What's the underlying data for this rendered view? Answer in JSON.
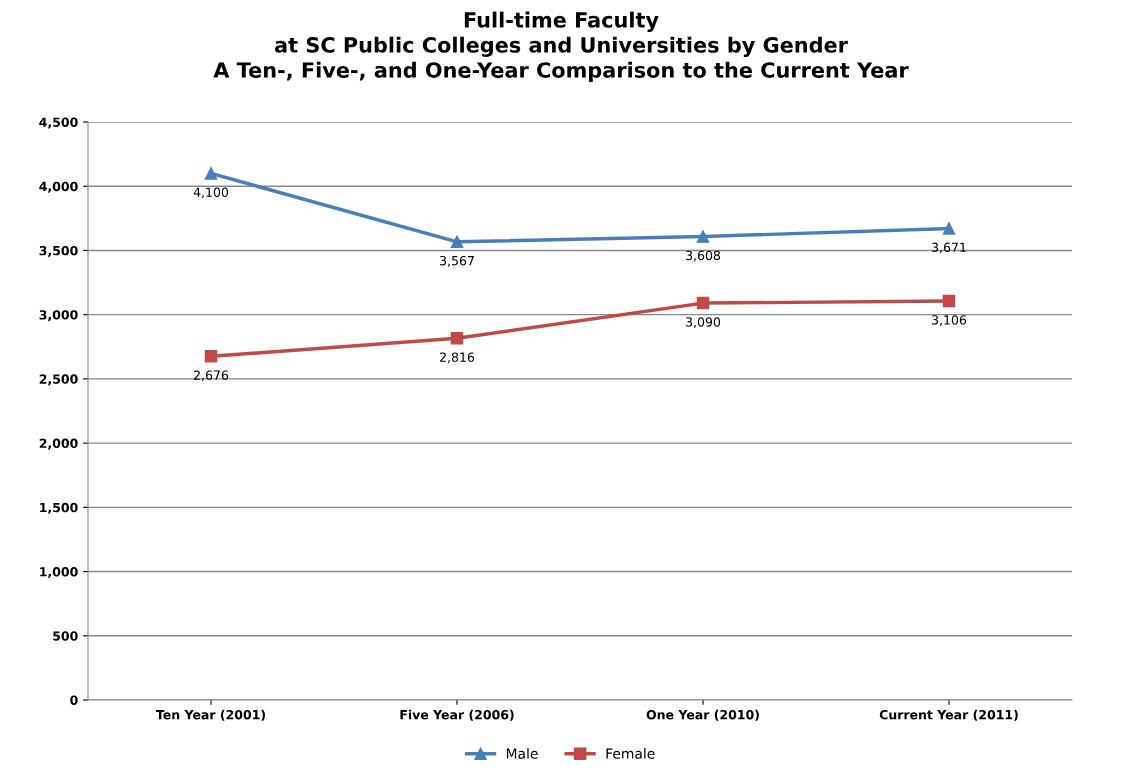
{
  "chart_data": {
    "type": "line",
    "title": "Full-time Faculty\nat SC Public Colleges and Universities by Gender\nA Ten-, Five-, and One-Year Comparison to the Current Year",
    "categories": [
      "Ten Year (2001)",
      "Five Year (2006)",
      "One Year (2010)",
      "Current Year (2011)"
    ],
    "series": [
      {
        "name": "Male",
        "color": "#4a7ebb",
        "marker": "triangle",
        "values": [
          4100,
          3567,
          3608,
          3671
        ],
        "value_labels": [
          "4,100",
          "3,567",
          "3,608",
          "3,671"
        ]
      },
      {
        "name": "Female",
        "color": "#be4b48",
        "marker": "square",
        "values": [
          2676,
          2816,
          3090,
          3106
        ],
        "value_labels": [
          "2,676",
          "2,816",
          "3,090",
          "3,106"
        ]
      }
    ],
    "ylim": [
      0,
      4500
    ],
    "yticks": [
      0,
      500,
      {
        "value": 1000,
        "label": "1,000"
      },
      {
        "value": 1500,
        "label": "1,500"
      },
      {
        "value": 2000,
        "label": "2,000"
      },
      {
        "value": 2500,
        "label": "2,500"
      },
      {
        "value": 3000,
        "label": "3,000"
      },
      {
        "value": 3500,
        "label": "3,500"
      },
      {
        "value": 4000,
        "label": "4,000"
      },
      {
        "value": 4500,
        "label": "4,500"
      }
    ],
    "grid": "y",
    "legend": "bottom",
    "line_style": "solid"
  }
}
